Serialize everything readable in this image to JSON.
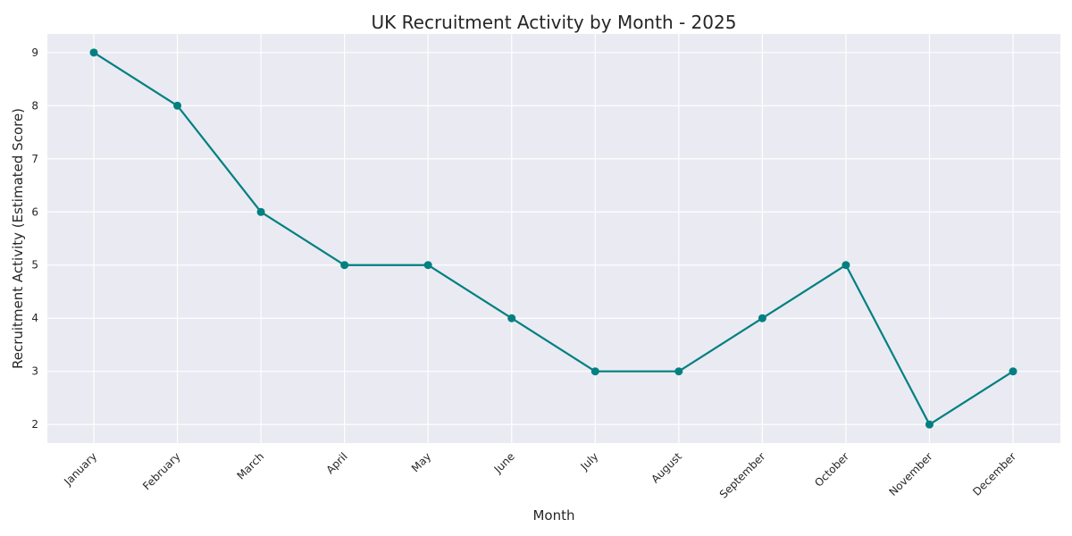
{
  "chart_data": {
    "type": "line",
    "title": "UK Recruitment Activity by Month - 2025",
    "xlabel": "Month",
    "ylabel": "Recruitment Activity (Estimated Score)",
    "categories": [
      "January",
      "February",
      "March",
      "April",
      "May",
      "June",
      "July",
      "August",
      "September",
      "October",
      "November",
      "December"
    ],
    "series": [
      {
        "values": [
          9,
          8,
          6,
          5,
          5,
          4,
          3,
          3,
          4,
          5,
          2,
          3
        ]
      }
    ],
    "ylim": [
      1.65,
      9.35
    ],
    "yticks": [
      2,
      3,
      4,
      5,
      6,
      7,
      8,
      9
    ],
    "grid": true,
    "colors": {
      "line": "#008080",
      "plot_bg": "#eaeaf2",
      "grid": "#ffffff"
    }
  }
}
